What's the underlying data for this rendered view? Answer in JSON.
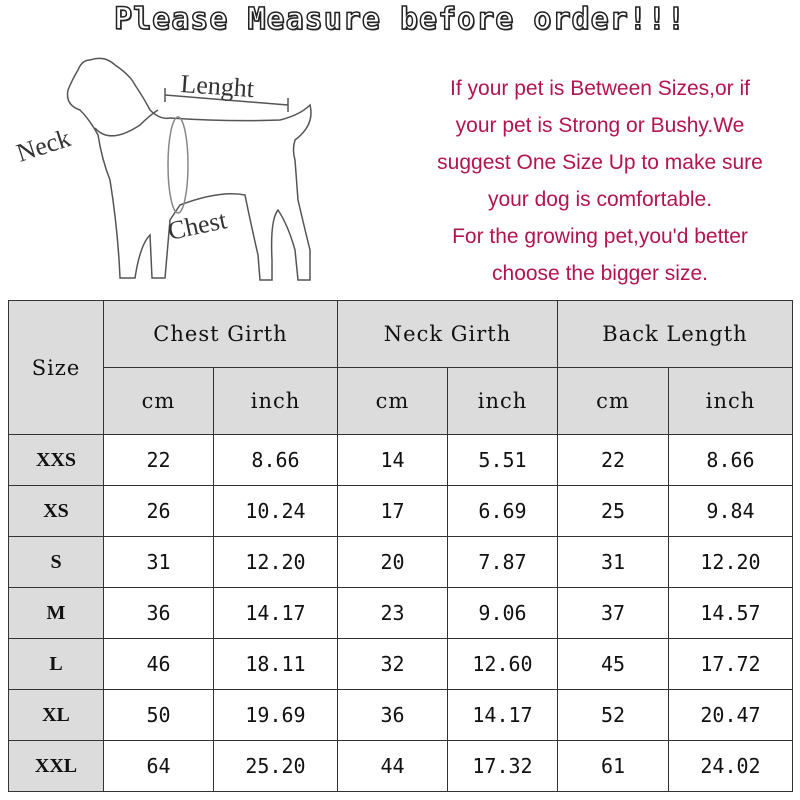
{
  "title": "Please Measure before order!!!",
  "diagram": {
    "neck_label": "Neck",
    "length_label": "Lenght",
    "chest_label": "Chest"
  },
  "note_lines": [
    "If your pet is Between Sizes,or if",
    "your pet is Strong or Bushy.We",
    "suggest One Size Up to make sure",
    "your dog is comfortable.",
    "For the growing pet,you'd better",
    "choose the bigger size."
  ],
  "table": {
    "size_header": "Size",
    "groups": [
      "Chest Girth",
      "Neck Girth",
      "Back Length"
    ],
    "units": [
      "cm",
      "inch",
      "cm",
      "inch",
      "cm",
      "inch"
    ],
    "rows": [
      {
        "size": "XXS",
        "values": [
          "22",
          "8.66",
          "14",
          "5.51",
          "22",
          "8.66"
        ]
      },
      {
        "size": "XS",
        "values": [
          "26",
          "10.24",
          "17",
          "6.69",
          "25",
          "9.84"
        ]
      },
      {
        "size": "S",
        "values": [
          "31",
          "12.20",
          "20",
          "7.87",
          "31",
          "12.20"
        ]
      },
      {
        "size": "M",
        "values": [
          "36",
          "14.17",
          "23",
          "9.06",
          "37",
          "14.57"
        ]
      },
      {
        "size": "L",
        "values": [
          "46",
          "18.11",
          "32",
          "12.60",
          "45",
          "17.72"
        ]
      },
      {
        "size": "XL",
        "values": [
          "50",
          "19.69",
          "36",
          "14.17",
          "52",
          "20.47"
        ]
      },
      {
        "size": "XXL",
        "values": [
          "64",
          "25.20",
          "44",
          "17.32",
          "61",
          "24.02"
        ]
      }
    ]
  }
}
